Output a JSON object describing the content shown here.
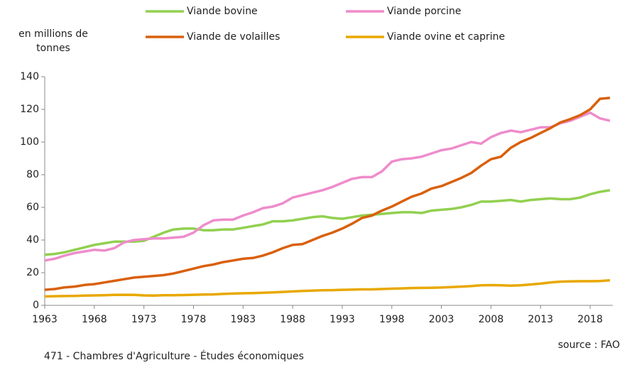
{
  "chart_data": {
    "type": "line",
    "ylabel": "en millions de tonnes",
    "source": "source : FAO",
    "footer": "471 - Chambres d'Agriculture - Études économiques",
    "x": [
      1963,
      1964,
      1965,
      1966,
      1967,
      1968,
      1969,
      1970,
      1971,
      1972,
      1973,
      1974,
      1975,
      1976,
      1977,
      1978,
      1979,
      1980,
      1981,
      1982,
      1983,
      1984,
      1985,
      1986,
      1987,
      1988,
      1989,
      1990,
      1991,
      1992,
      1993,
      1994,
      1995,
      1996,
      1997,
      1998,
      1999,
      2000,
      2001,
      2002,
      2003,
      2004,
      2005,
      2006,
      2007,
      2008,
      2009,
      2010,
      2011,
      2012,
      2013,
      2014,
      2015,
      2016,
      2017,
      2018,
      2019,
      2020
    ],
    "series": [
      {
        "name": "Viande bovine",
        "color": "#92d050",
        "values": [
          31,
          31.5,
          32.5,
          34,
          35.5,
          37,
          38,
          39,
          39,
          39,
          39.5,
          42,
          44.5,
          46.5,
          47,
          47,
          46,
          46,
          46.5,
          46.5,
          47.5,
          48.5,
          49.5,
          51.5,
          51.5,
          52,
          53,
          54,
          54.5,
          53.5,
          53,
          54,
          55,
          55.5,
          56,
          56.5,
          57,
          57,
          56.5,
          58,
          58.5,
          59,
          60,
          61.5,
          63.5,
          63.5,
          64,
          64.5,
          63.5,
          64.5,
          65,
          65.5,
          65,
          65,
          66,
          68,
          69.5,
          70.5
        ]
      },
      {
        "name": "Viande porcine",
        "color": "#ee8ccb",
        "values": [
          27.5,
          28.5,
          30.5,
          32,
          33,
          34,
          33.5,
          35,
          38.5,
          40,
          40.5,
          41,
          41,
          41.5,
          42,
          44.5,
          49,
          52,
          52.5,
          52.5,
          55,
          57,
          59.5,
          60.5,
          62.5,
          66,
          67.5,
          69,
          70.5,
          72.5,
          75,
          77.5,
          78.5,
          78.5,
          82,
          88,
          89.5,
          90,
          91,
          93,
          95,
          96,
          98,
          100,
          99,
          103,
          105.5,
          107,
          106,
          107.5,
          109,
          109,
          111.5,
          113,
          115.5,
          118,
          114.5,
          113
        ]
      },
      {
        "name": "Viande de volailles",
        "color": "#d9600c",
        "values": [
          9.5,
          10,
          11,
          11.5,
          12.5,
          13,
          14,
          15,
          16,
          17,
          17.5,
          18,
          18.5,
          19.5,
          21,
          22.5,
          24,
          25,
          26.5,
          27.5,
          28.5,
          29,
          30.5,
          32.5,
          35,
          37,
          37.5,
          40,
          42.5,
          44.5,
          47,
          50,
          53.5,
          55,
          58,
          60.5,
          63.5,
          66.5,
          68.5,
          71.5,
          73,
          75.5,
          78,
          81,
          85.5,
          89.5,
          91,
          96.5,
          100,
          102.5,
          105.5,
          108.5,
          112,
          114,
          116.5,
          120,
          126.5,
          127
        ]
      },
      {
        "name": "Viande ovine et caprine",
        "color": "#e8a800",
        "values": [
          5.5,
          5.6,
          5.7,
          5.8,
          6,
          6.1,
          6.2,
          6.4,
          6.5,
          6.4,
          6.1,
          6,
          6.2,
          6.2,
          6.3,
          6.5,
          6.6,
          6.7,
          7,
          7.2,
          7.4,
          7.5,
          7.7,
          7.9,
          8.2,
          8.5,
          8.8,
          9,
          9.2,
          9.3,
          9.5,
          9.6,
          9.8,
          9.8,
          10,
          10.2,
          10.4,
          10.6,
          10.7,
          10.8,
          10.9,
          11.2,
          11.5,
          11.8,
          12.3,
          12.4,
          12.3,
          12.1,
          12.3,
          12.8,
          13.3,
          14,
          14.5,
          14.7,
          14.8,
          14.8,
          14.9,
          15.3
        ]
      }
    ],
    "xlim": [
      1963,
      2020
    ],
    "xticks": [
      1963,
      1968,
      1973,
      1978,
      1983,
      1988,
      1993,
      1998,
      2003,
      2008,
      2013,
      2018
    ],
    "ylim": [
      0,
      140
    ],
    "yticks": [
      0,
      20,
      40,
      60,
      80,
      100,
      120,
      140
    ],
    "grid": false
  }
}
